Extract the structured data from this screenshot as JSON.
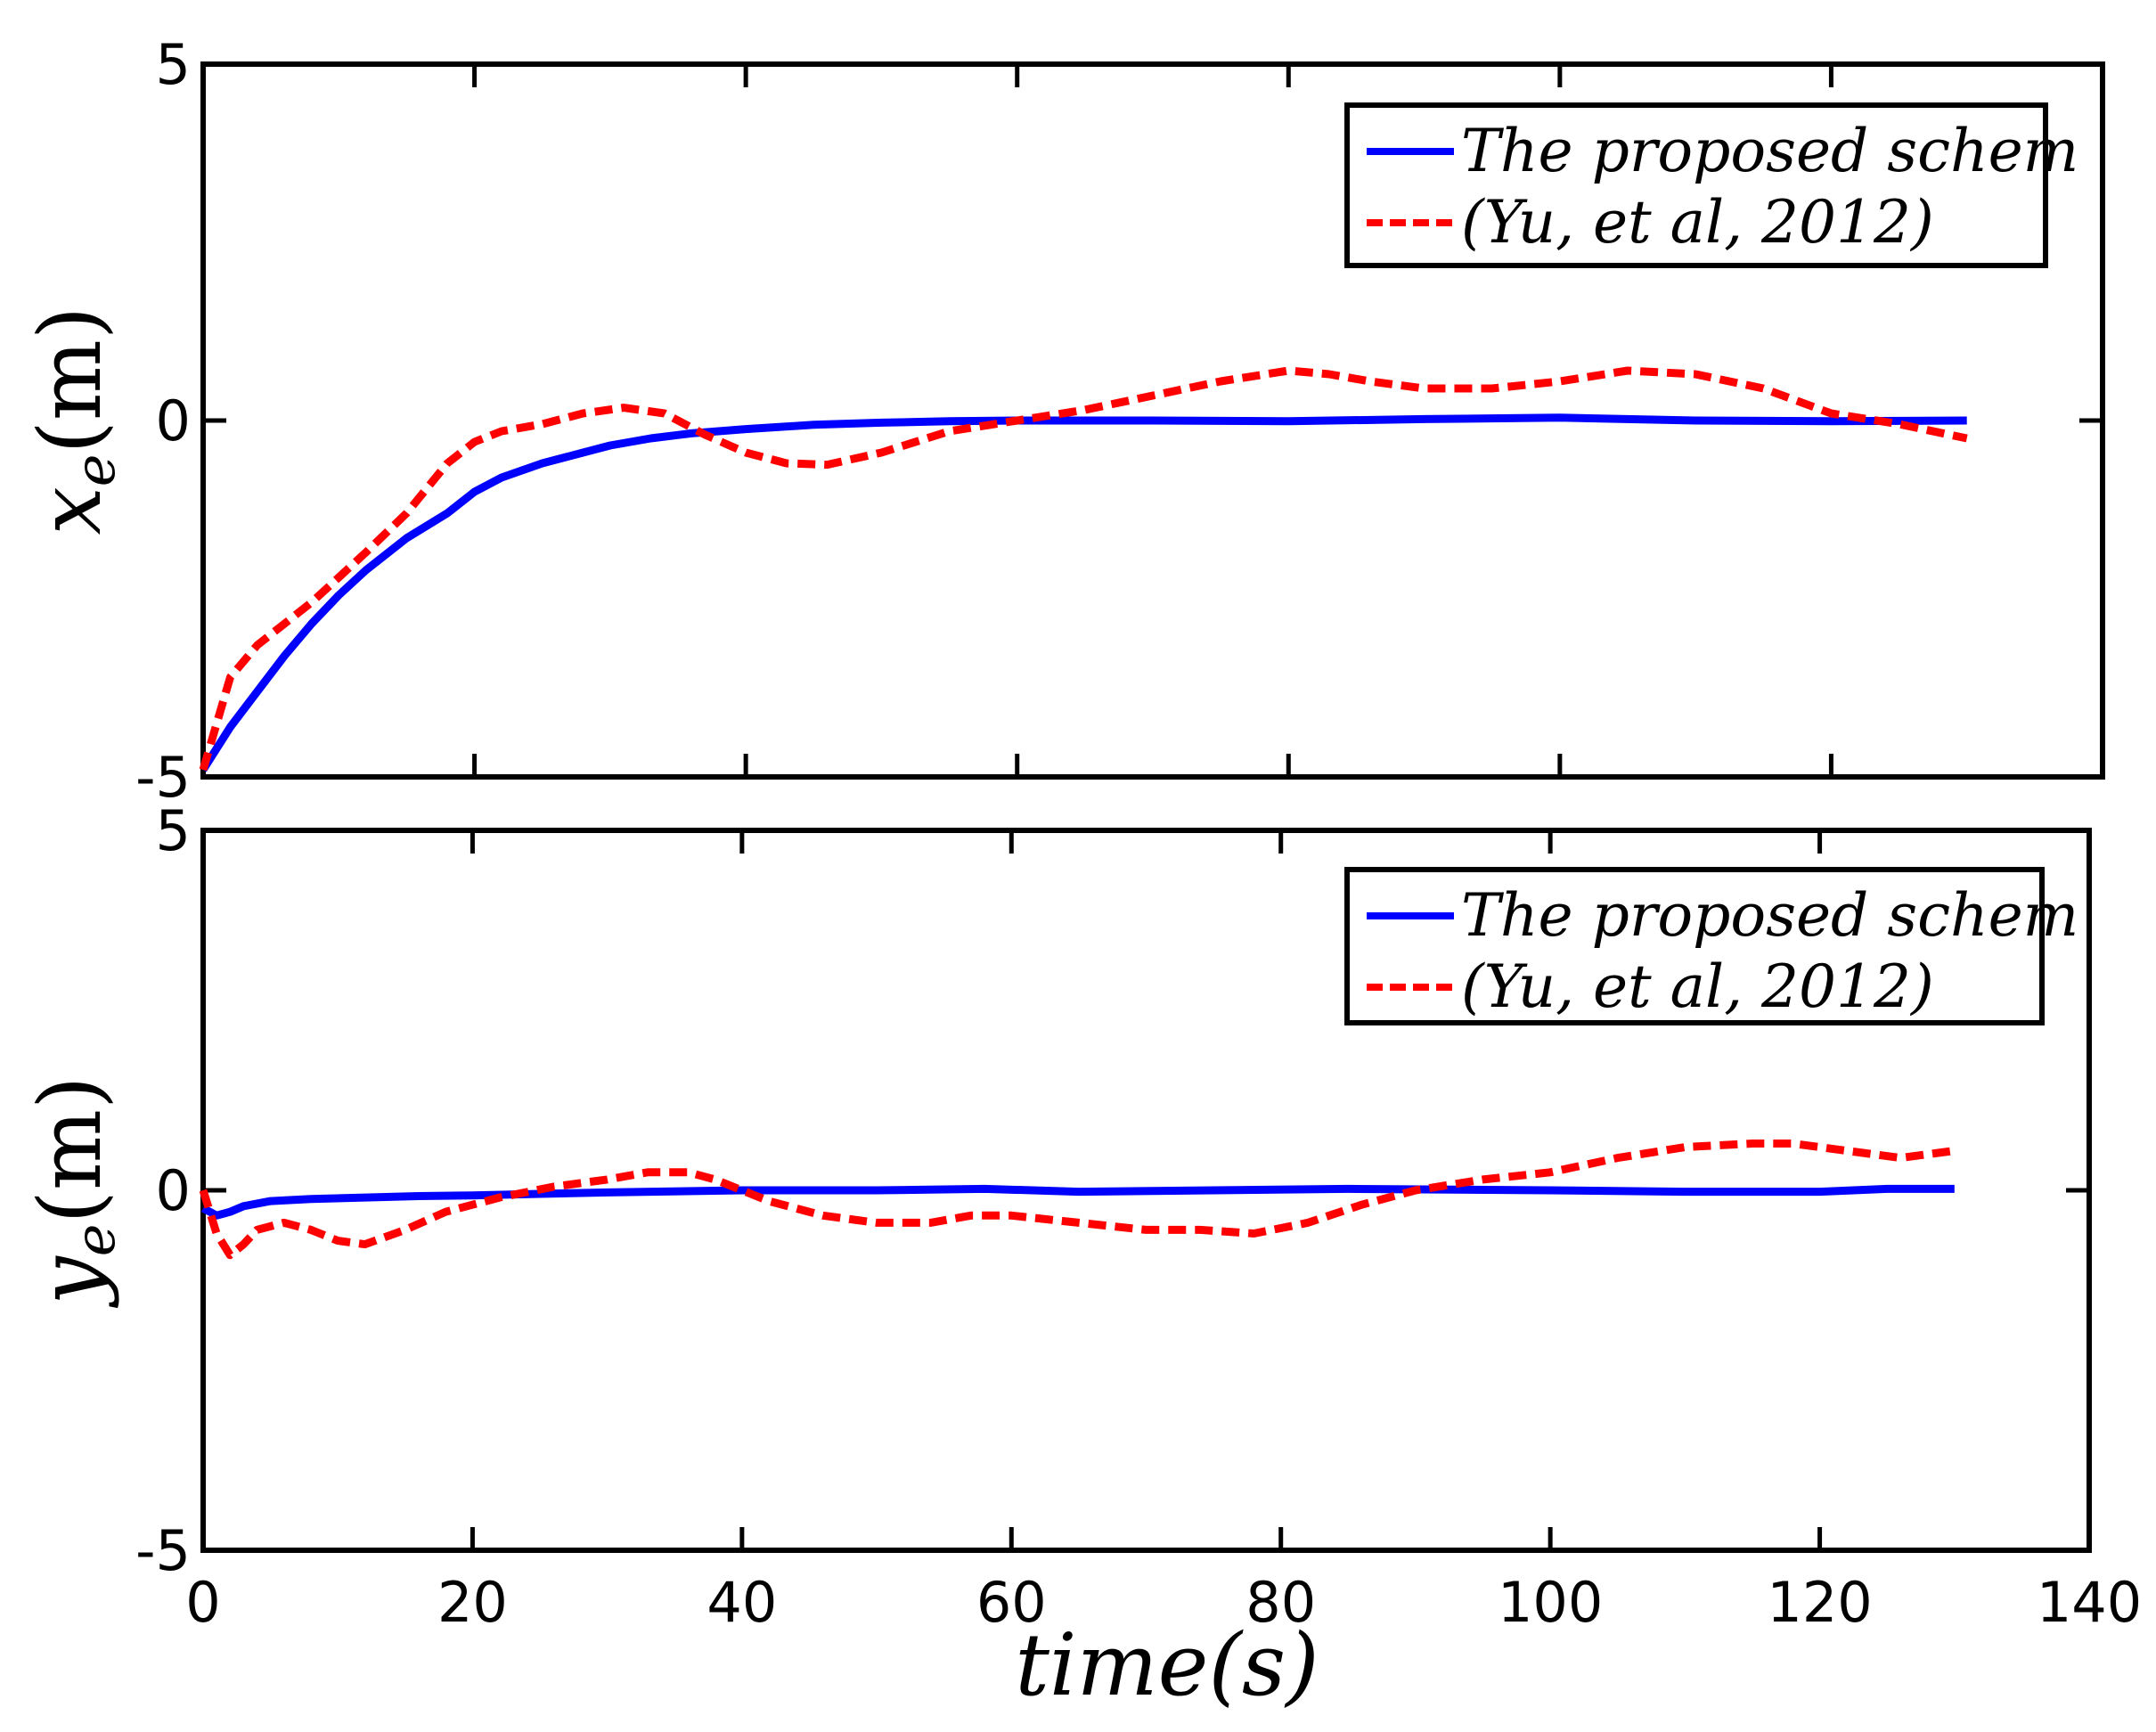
{
  "chart_data": [
    {
      "type": "line",
      "panel": "top",
      "ylabel_base": "x",
      "ylabel_sub": "e",
      "ylabel_unit": "(m)",
      "xlim": [
        0,
        140
      ],
      "ylim": [
        -5,
        5
      ],
      "xticks": [
        0,
        20,
        40,
        60,
        80,
        100,
        120,
        140
      ],
      "yticks": [
        -5,
        0,
        5
      ],
      "legend_position": "top-right",
      "series": [
        {
          "name": "The proposed schem",
          "color": "#0000ff",
          "style": "solid",
          "x": [
            0,
            2,
            4,
            6,
            8,
            10,
            12,
            15,
            18,
            20,
            22,
            25,
            28,
            30,
            33,
            36,
            40,
            45,
            50,
            55,
            60,
            70,
            80,
            90,
            100,
            110,
            120,
            130
          ],
          "y": [
            -4.9,
            -4.3,
            -3.8,
            -3.3,
            -2.85,
            -2.45,
            -2.1,
            -1.65,
            -1.3,
            -1.0,
            -0.8,
            -0.6,
            -0.45,
            -0.35,
            -0.25,
            -0.18,
            -0.12,
            -0.06,
            -0.03,
            -0.01,
            0.0,
            0.0,
            -0.01,
            0.02,
            0.04,
            0.0,
            -0.01,
            0.0
          ]
        },
        {
          "name": "(Yu, et al, 2012)",
          "color": "#ff0000",
          "style": "dashed",
          "x": [
            0,
            2,
            4,
            6,
            8,
            10,
            12,
            15,
            18,
            20,
            22,
            25,
            28,
            31,
            34,
            37,
            40,
            43,
            46,
            50,
            55,
            60,
            65,
            70,
            75,
            80,
            83,
            86,
            90,
            95,
            100,
            105,
            110,
            115,
            120,
            125,
            130
          ],
          "y": [
            -4.9,
            -3.6,
            -3.15,
            -2.85,
            -2.55,
            -2.2,
            -1.85,
            -1.3,
            -0.6,
            -0.3,
            -0.15,
            -0.05,
            0.1,
            0.18,
            0.1,
            -0.2,
            -0.45,
            -0.6,
            -0.62,
            -0.45,
            -0.15,
            0.0,
            0.15,
            0.35,
            0.55,
            0.7,
            0.65,
            0.55,
            0.45,
            0.45,
            0.55,
            0.7,
            0.65,
            0.45,
            0.1,
            -0.05,
            -0.25
          ]
        }
      ]
    },
    {
      "type": "line",
      "panel": "bottom",
      "ylabel_base": "y",
      "ylabel_sub": "e",
      "ylabel_unit": "(m)",
      "xlabel": "time(s)",
      "xlim": [
        0,
        140
      ],
      "ylim": [
        -5,
        5
      ],
      "xticks": [
        0,
        20,
        40,
        60,
        80,
        100,
        120,
        140
      ],
      "yticks": [
        -5,
        0,
        5
      ],
      "legend_position": "top-right",
      "series": [
        {
          "name": "The proposed schem",
          "color": "#0000ff",
          "style": "solid",
          "x": [
            0,
            0.5,
            1,
            2,
            3,
            5,
            8,
            12,
            16,
            20,
            25,
            30,
            40,
            50,
            58,
            65,
            75,
            85,
            100,
            110,
            120,
            125,
            130
          ],
          "y": [
            -0.25,
            -0.3,
            -0.35,
            -0.3,
            -0.22,
            -0.15,
            -0.12,
            -0.1,
            -0.08,
            -0.07,
            -0.05,
            -0.03,
            0.0,
            0.0,
            0.02,
            -0.02,
            0.0,
            0.02,
            0.0,
            -0.02,
            -0.02,
            0.02,
            0.02
          ]
        },
        {
          "name": "(Yu, et al, 2012)",
          "color": "#ff0000",
          "style": "dashed",
          "x": [
            0,
            1,
            2,
            3,
            4,
            6,
            8,
            10,
            12,
            15,
            18,
            22,
            26,
            30,
            33,
            36,
            38,
            42,
            46,
            50,
            54,
            57,
            60,
            65,
            70,
            74,
            78,
            82,
            86,
            90,
            95,
            100,
            105,
            110,
            115,
            118,
            122,
            126,
            130
          ],
          "y": [
            0.0,
            -0.6,
            -0.9,
            -0.75,
            -0.55,
            -0.45,
            -0.55,
            -0.7,
            -0.75,
            -0.55,
            -0.3,
            -0.1,
            0.05,
            0.15,
            0.25,
            0.25,
            0.15,
            -0.15,
            -0.35,
            -0.45,
            -0.45,
            -0.35,
            -0.35,
            -0.45,
            -0.55,
            -0.55,
            -0.6,
            -0.45,
            -0.2,
            0.0,
            0.15,
            0.25,
            0.45,
            0.6,
            0.65,
            0.65,
            0.55,
            0.45,
            0.55
          ]
        }
      ]
    }
  ]
}
